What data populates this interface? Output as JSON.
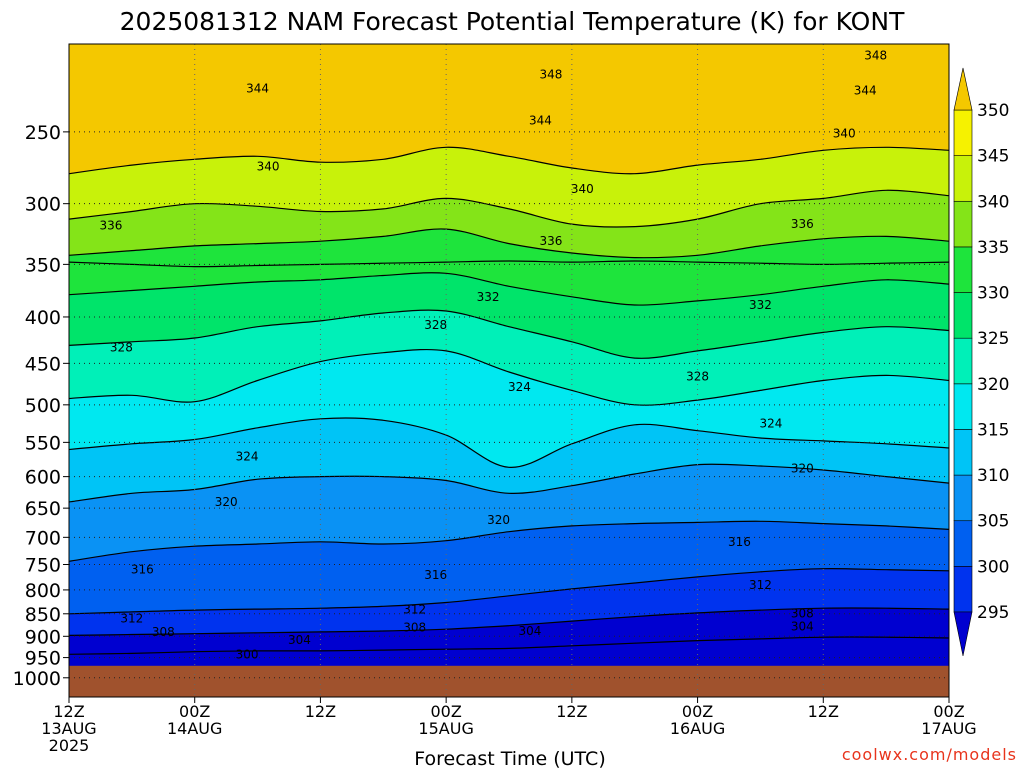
{
  "chart_data": {
    "type": "contour",
    "title": "2025081312 NAM Forecast Potential Temperature (K) for KONT",
    "xlabel": "Forecast Time (UTC)",
    "ylabel": "",
    "x_ticks": [
      {
        "hours": 0,
        "lines": [
          "12Z",
          "13AUG",
          "2025"
        ]
      },
      {
        "hours": 12,
        "lines": [
          "00Z",
          "14AUG"
        ]
      },
      {
        "hours": 24,
        "lines": [
          "12Z"
        ]
      },
      {
        "hours": 36,
        "lines": [
          "00Z",
          "15AUG"
        ]
      },
      {
        "hours": 48,
        "lines": [
          "12Z"
        ]
      },
      {
        "hours": 60,
        "lines": [
          "00Z",
          "16AUG"
        ]
      },
      {
        "hours": 72,
        "lines": [
          "12Z"
        ]
      },
      {
        "hours": 84,
        "lines": [
          "00Z",
          "17AUG"
        ]
      }
    ],
    "xlim": [
      0,
      84
    ],
    "y_ticks": [
      250,
      300,
      350,
      400,
      450,
      500,
      550,
      600,
      650,
      700,
      750,
      800,
      850,
      900,
      950,
      1000
    ],
    "ylim": [
      1050,
      200
    ],
    "y_scale": "log",
    "surface_pressure_hPa": 970,
    "colorbar": {
      "levels": [
        295,
        300,
        305,
        310,
        315,
        320,
        325,
        330,
        335,
        340,
        345,
        350
      ],
      "colors": [
        "#0000d0",
        "#0033ee",
        "#0060f0",
        "#0a92f4",
        "#00c4f6",
        "#00e8f0",
        "#00f0b8",
        "#00e46a",
        "#1ee43c",
        "#84e418",
        "#c8f20a",
        "#f6f200",
        "#f4c800"
      ],
      "extend": "both"
    },
    "contour_interval": 2,
    "grid": "dotted",
    "ground_color": "#a0522d",
    "series": [
      {
        "x": [
          0,
          6,
          12,
          18,
          24,
          30,
          36,
          42,
          48,
          54,
          60,
          66,
          72,
          78,
          84
        ],
        "y": [
          348,
          350,
          352,
          351,
          350,
          349,
          348,
          347,
          348,
          347,
          348,
          349,
          350,
          349,
          348
        ]
      },
      {
        "x": [
          0,
          6,
          12,
          18,
          24,
          30,
          36,
          42,
          48,
          54,
          60,
          66,
          72,
          78,
          84
        ],
        "y": [
          278,
          272,
          268,
          266,
          270,
          268,
          260,
          266,
          274,
          278,
          272,
          268,
          262,
          260,
          262
        ]
      },
      {
        "x": [
          0,
          6,
          12,
          18,
          24,
          30,
          36,
          42,
          48,
          54,
          60,
          66,
          72,
          78,
          84
        ],
        "y": [
          312,
          306,
          300,
          302,
          306,
          304,
          296,
          304,
          316,
          318,
          312,
          300,
          296,
          290,
          294
        ]
      },
      {
        "x": [
          0,
          6,
          12,
          18,
          24,
          30,
          36,
          42,
          48,
          54,
          60,
          66,
          72,
          78,
          84
        ],
        "y": [
          342,
          338,
          334,
          332,
          330,
          326,
          320,
          332,
          340,
          344,
          342,
          334,
          328,
          326,
          330
        ]
      },
      {
        "x": [
          0,
          6,
          12,
          18,
          24,
          30,
          36,
          42,
          48,
          54,
          60,
          66,
          72,
          78,
          84
        ],
        "y": [
          378,
          374,
          370,
          366,
          364,
          360,
          358,
          370,
          380,
          388,
          384,
          378,
          370,
          364,
          368
        ]
      },
      {
        "x": [
          0,
          6,
          12,
          18,
          24,
          30,
          36,
          42,
          48,
          54,
          60,
          66,
          72,
          78,
          84
        ],
        "y": [
          430,
          426,
          422,
          410,
          404,
          396,
          394,
          410,
          426,
          444,
          436,
          426,
          416,
          410,
          414
        ]
      },
      {
        "x": [
          0,
          6,
          12,
          18,
          24,
          30,
          36,
          42,
          48,
          54,
          60,
          66,
          72,
          78,
          84
        ],
        "y": [
          492,
          488,
          496,
          470,
          448,
          438,
          436,
          460,
          482,
          500,
          494,
          482,
          470,
          464,
          470
        ]
      },
      {
        "x": [
          0,
          6,
          12,
          18,
          24,
          30,
          36,
          42,
          48,
          54,
          60,
          66,
          72,
          78,
          84
        ],
        "y": [
          560,
          552,
          546,
          530,
          518,
          520,
          540,
          586,
          552,
          526,
          534,
          544,
          548,
          552,
          558
        ]
      },
      {
        "x": [
          0,
          6,
          12,
          18,
          24,
          30,
          36,
          42,
          48,
          54,
          60,
          66,
          72,
          78,
          84
        ],
        "y": [
          640,
          626,
          620,
          604,
          600,
          600,
          606,
          626,
          614,
          596,
          582,
          584,
          590,
          600,
          610
        ]
      },
      {
        "x": [
          0,
          6,
          12,
          18,
          24,
          30,
          36,
          42,
          48,
          54,
          60,
          66,
          72,
          78,
          84
        ],
        "y": [
          744,
          726,
          716,
          712,
          708,
          712,
          706,
          690,
          680,
          676,
          674,
          672,
          676,
          680,
          686
        ]
      },
      {
        "x": [
          0,
          6,
          12,
          18,
          24,
          30,
          36,
          42,
          48,
          54,
          60,
          66,
          72,
          78,
          84
        ],
        "y": [
          850,
          846,
          842,
          840,
          838,
          834,
          826,
          812,
          798,
          786,
          774,
          764,
          758,
          760,
          762
        ]
      },
      {
        "x": [
          0,
          6,
          12,
          18,
          24,
          30,
          36,
          42,
          48,
          54,
          60,
          66,
          72,
          78,
          84
        ],
        "y": [
          898,
          896,
          894,
          892,
          890,
          888,
          884,
          876,
          866,
          856,
          848,
          842,
          838,
          838,
          840
        ]
      },
      {
        "x": [
          0,
          6,
          12,
          18,
          24,
          30,
          36,
          42,
          48,
          54,
          60,
          66,
          72,
          78,
          84
        ],
        "y": [
          942,
          940,
          936,
          934,
          934,
          932,
          930,
          928,
          922,
          916,
          910,
          906,
          902,
          902,
          904
        ]
      }
    ],
    "contour_labels": [
      {
        "text": "348",
        "x": 46,
        "y": 216
      },
      {
        "text": "348",
        "x": 77,
        "y": 206
      },
      {
        "text": "344",
        "x": 18,
        "y": 224
      },
      {
        "text": "344",
        "x": 45,
        "y": 243
      },
      {
        "text": "344",
        "x": 76,
        "y": 225
      },
      {
        "text": "340",
        "x": 19,
        "y": 273
      },
      {
        "text": "340",
        "x": 49,
        "y": 289
      },
      {
        "text": "340",
        "x": 74,
        "y": 251
      },
      {
        "text": "336",
        "x": 4,
        "y": 317
      },
      {
        "text": "336",
        "x": 46,
        "y": 330
      },
      {
        "text": "336",
        "x": 70,
        "y": 316
      },
      {
        "text": "332",
        "x": 40,
        "y": 380
      },
      {
        "text": "332",
        "x": 66,
        "y": 388
      },
      {
        "text": "328",
        "x": 5,
        "y": 432
      },
      {
        "text": "328",
        "x": 35,
        "y": 408
      },
      {
        "text": "328",
        "x": 60,
        "y": 465
      },
      {
        "text": "324",
        "x": 43,
        "y": 478
      },
      {
        "text": "324",
        "x": 67,
        "y": 524
      },
      {
        "text": "324",
        "x": 17,
        "y": 570
      },
      {
        "text": "320",
        "x": 70,
        "y": 588
      },
      {
        "text": "320",
        "x": 15,
        "y": 640
      },
      {
        "text": "320",
        "x": 41,
        "y": 670
      },
      {
        "text": "316",
        "x": 64,
        "y": 708
      },
      {
        "text": "316",
        "x": 7,
        "y": 760
      },
      {
        "text": "316",
        "x": 35,
        "y": 770
      },
      {
        "text": "312",
        "x": 66,
        "y": 790
      },
      {
        "text": "312",
        "x": 33,
        "y": 841
      },
      {
        "text": "312",
        "x": 6,
        "y": 860
      },
      {
        "text": "308",
        "x": 70,
        "y": 849
      },
      {
        "text": "308",
        "x": 33,
        "y": 880
      },
      {
        "text": "308",
        "x": 9,
        "y": 890
      },
      {
        "text": "304",
        "x": 44,
        "y": 888
      },
      {
        "text": "304",
        "x": 70,
        "y": 878
      },
      {
        "text": "304",
        "x": 22,
        "y": 908
      },
      {
        "text": "300",
        "x": 17,
        "y": 942
      }
    ],
    "credit": "coolwx.com/models"
  }
}
